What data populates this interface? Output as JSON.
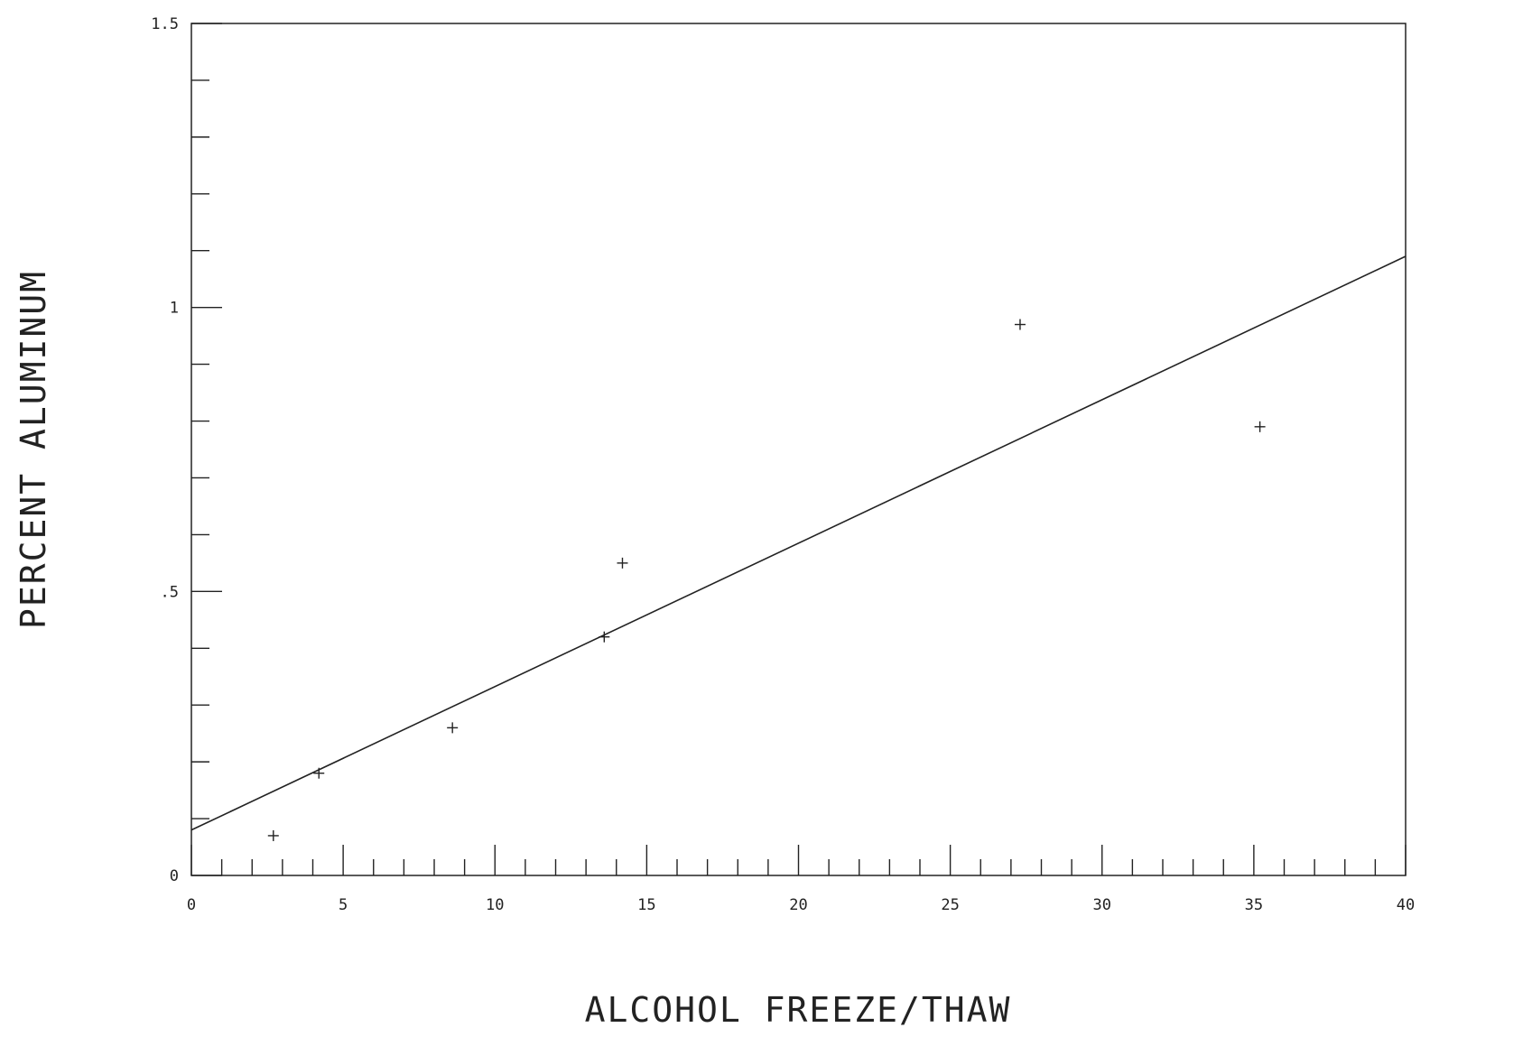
{
  "chart_data": {
    "type": "scatter",
    "title": "",
    "xlabel": "ALCOHOL FREEZE/THAW",
    "ylabel": "PERCENT ALUMINUM",
    "xlim": [
      0,
      40
    ],
    "ylim": [
      0,
      1.5
    ],
    "x_major_ticks": [
      0,
      5,
      10,
      15,
      20,
      25,
      30,
      35,
      40
    ],
    "x_tick_labels": [
      "0",
      "5",
      "10",
      "15",
      "20",
      "25",
      "30",
      "35",
      "40"
    ],
    "x_minor_step": 1,
    "y_major_ticks": [
      0,
      0.5,
      1,
      1.5
    ],
    "y_tick_labels": [
      "0",
      ".5",
      "1",
      "1.5"
    ],
    "y_minor_step": 0.1,
    "grid": false,
    "marker": "+",
    "points": [
      {
        "x": 2.7,
        "y": 0.07
      },
      {
        "x": 4.2,
        "y": 0.18
      },
      {
        "x": 8.6,
        "y": 0.26
      },
      {
        "x": 13.6,
        "y": 0.42
      },
      {
        "x": 14.2,
        "y": 0.55
      },
      {
        "x": 27.3,
        "y": 0.97
      },
      {
        "x": 35.2,
        "y": 0.79
      }
    ],
    "fit_line": {
      "x": [
        0,
        40
      ],
      "y": [
        0.08,
        1.09
      ]
    }
  }
}
